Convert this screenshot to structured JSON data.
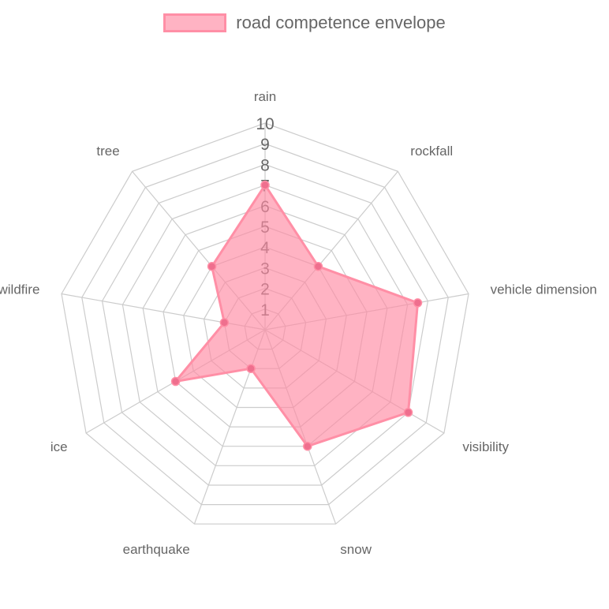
{
  "chart_data": {
    "type": "radar",
    "axes": [
      "rain",
      "rockfall",
      "vehicle dimension",
      "visibility",
      "snow",
      "earthquake",
      "ice",
      "wildfire",
      "tree"
    ],
    "series": [
      {
        "name": "road competence envelope",
        "values": [
          7,
          4,
          7.5,
          8,
          6,
          2,
          5,
          2,
          4
        ]
      }
    ],
    "r_range": [
      0,
      10
    ],
    "ticks": [
      1,
      2,
      3,
      4,
      5,
      6,
      7,
      8,
      9,
      10
    ],
    "legend_position": "top",
    "colors": {
      "fill": "rgba(255,138,163,0.65)",
      "line": "#ff8fa6",
      "point": "#ef6f8e",
      "grid": "#cccccc",
      "text": "#666666"
    }
  }
}
